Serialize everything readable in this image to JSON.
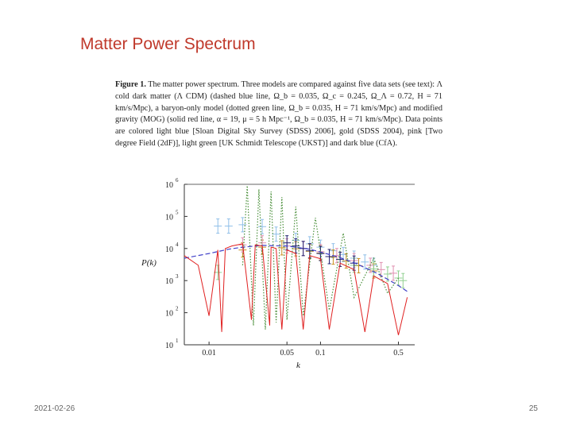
{
  "slide": {
    "title": "Matter Power Spectrum",
    "date": "2021-02-26",
    "page_number": "25"
  },
  "caption": {
    "label": "Figure 1.",
    "text": "The matter power spectrum. Three models are compared against five data sets (see text): Λ cold dark matter (Λ CDM) (dashed blue line, Ω_b = 0.035, Ω_c = 0.245, Ω_Λ = 0.72, H = 71 km/s/Mpc), a baryon-only model (dotted green line, Ω_b = 0.035, H = 71 km/s/Mpc) and modified gravity (MOG) (solid red line, α = 19, μ = 5 h Mpc⁻¹, Ω_b = 0.035, H = 71 km/s/Mpc). Data points are colored light blue [Sloan Digital Sky Survey (SDSS) 2006], gold (SDSS 2004), pink [Two degree Field (2dF)], light green [UK Schmidt Telescope (UKST)] and dark blue (CfA)."
  },
  "chart_data": {
    "type": "line",
    "xlabel": "k",
    "ylabel": "P(k)",
    "xscale": "log",
    "yscale": "log",
    "xlim": [
      0.006,
      0.7
    ],
    "ylim": [
      10,
      1000000
    ],
    "x_ticks": [
      {
        "value": 0.01,
        "label": "0.01"
      },
      {
        "value": 0.05,
        "label": "0.05"
      },
      {
        "value": 0.1,
        "label": "0.1"
      },
      {
        "value": 0.5,
        "label": "0.5"
      }
    ],
    "y_ticks": [
      {
        "value": 10,
        "exp": "1"
      },
      {
        "value": 100,
        "exp": "2"
      },
      {
        "value": 1000,
        "exp": "3"
      },
      {
        "value": 10000,
        "exp": "4"
      },
      {
        "value": 100000,
        "exp": "5"
      },
      {
        "value": 1000000,
        "exp": "6"
      }
    ],
    "colors": {
      "lcdm": "#4040c8",
      "baryon": "#4a8f3a",
      "mog": "#e02020",
      "sdss2006": "#8fbfe8",
      "sdss2004": "#c89020",
      "twodf": "#e090b0",
      "ukst": "#90d090",
      "cfa": "#202070"
    },
    "series": [
      {
        "key": "lcdm",
        "style": "dashed",
        "x": [
          0.006,
          0.01,
          0.015,
          0.02,
          0.03,
          0.05,
          0.08,
          0.1,
          0.15,
          0.2,
          0.3,
          0.4,
          0.5,
          0.6
        ],
        "y": [
          5000,
          7000,
          9500,
          11000,
          12500,
          12000,
          9500,
          7800,
          5200,
          3600,
          1900,
          1100,
          700,
          460
        ]
      },
      {
        "key": "baryon",
        "style": "dotted",
        "x": [
          0.02,
          0.022,
          0.025,
          0.028,
          0.032,
          0.036,
          0.04,
          0.045,
          0.05,
          0.06,
          0.07,
          0.09,
          0.12,
          0.16,
          0.2,
          0.3,
          0.4,
          0.5
        ],
        "y": [
          3000,
          900000,
          40,
          700000,
          30,
          600000,
          50,
          400000,
          60,
          200000,
          80,
          90000,
          120,
          30000,
          300,
          5000,
          400,
          1200
        ]
      },
      {
        "key": "mog",
        "style": "solid",
        "x": [
          0.006,
          0.008,
          0.01,
          0.012,
          0.013,
          0.014,
          0.016,
          0.02,
          0.024,
          0.026,
          0.03,
          0.035,
          0.036,
          0.04,
          0.045,
          0.05,
          0.06,
          0.07,
          0.08,
          0.1,
          0.12,
          0.15,
          0.2,
          0.25,
          0.3,
          0.4,
          0.5,
          0.6
        ],
        "y": [
          6000,
          3000,
          80,
          9000,
          25,
          10000,
          12000,
          14000,
          60,
          13000,
          12000,
          40,
          11000,
          10000,
          30,
          9000,
          7000,
          30,
          6000,
          4800,
          30,
          3500,
          2200,
          25,
          1400,
          800,
          20,
          300
        ]
      }
    ],
    "points": [
      {
        "key": "sdss2006",
        "x": [
          0.012,
          0.015,
          0.02,
          0.03,
          0.04,
          0.06,
          0.08,
          0.1,
          0.13,
          0.16,
          0.2,
          0.25,
          0.3
        ],
        "y": [
          50000,
          50000,
          55000,
          48000,
          28000,
          18000,
          14000,
          11000,
          8500,
          6500,
          5000,
          3800,
          3000
        ]
      },
      {
        "key": "sdss2004",
        "x": [
          0.02,
          0.03,
          0.045,
          0.06,
          0.08,
          0.1,
          0.13,
          0.17,
          0.22,
          0.3
        ],
        "y": [
          9000,
          11000,
          10500,
          9800,
          8200,
          7200,
          5400,
          4100,
          2900,
          2000
        ]
      },
      {
        "key": "twodf",
        "x": [
          0.02,
          0.03,
          0.05,
          0.07,
          0.1,
          0.14,
          0.2,
          0.28,
          0.35,
          0.45
        ],
        "y": [
          13000,
          15000,
          12000,
          10000,
          8000,
          6000,
          4200,
          3000,
          2200,
          1700
        ]
      },
      {
        "key": "ukst",
        "x": [
          0.012,
          0.2,
          0.3,
          0.4,
          0.5,
          0.55
        ],
        "y": [
          1800,
          3000,
          2300,
          1600,
          1200,
          1000
        ]
      },
      {
        "key": "cfa",
        "x": [
          0.05,
          0.06,
          0.07,
          0.08,
          0.1,
          0.12,
          0.15,
          0.2
        ],
        "y": [
          15000,
          12000,
          10000,
          8500,
          7000,
          5600,
          4600,
          3500
        ]
      }
    ]
  }
}
